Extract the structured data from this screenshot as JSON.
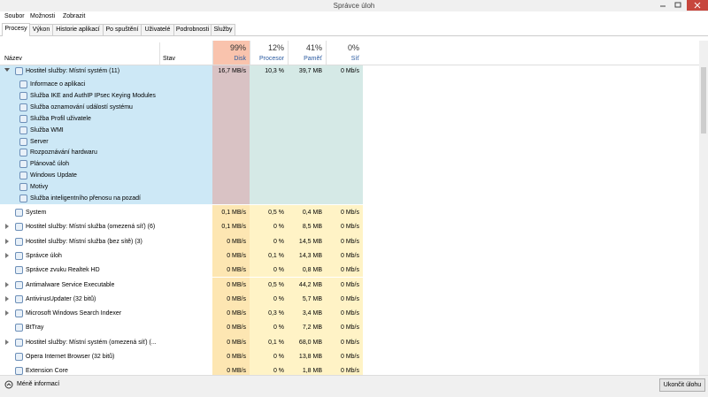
{
  "window": {
    "title": "Správce úloh"
  },
  "menu": [
    "Soubor",
    "Možnosti",
    "Zobrazit"
  ],
  "tabs": [
    "Procesy",
    "Výkon",
    "Historie aplikací",
    "Po spuštění",
    "Uživatelé",
    "Podrobnosti",
    "Služby"
  ],
  "columns": {
    "name": "Název",
    "status": "Stav",
    "disk": {
      "percent": "99%",
      "label": "Disk"
    },
    "cpu": {
      "percent": "12%",
      "label": "Procesor"
    },
    "memory": {
      "percent": "41%",
      "label": "Paměť"
    },
    "network": {
      "percent": "0%",
      "label": "Síť"
    }
  },
  "group": {
    "name": "Hostitel služby: Místní systém (11)",
    "disk": "16,7 MB/s",
    "cpu": "10,3 %",
    "memory": "39,7 MB",
    "network": "0 Mb/s",
    "children": [
      "Informace o aplikaci",
      "Služba IKE and AuthIP IPsec Keying Modules",
      "Služba oznamování událostí systému",
      "Služba Profil uživatele",
      "Služba WMI",
      "Server",
      "Rozpoznávání hardwaru",
      "Plánovač úloh",
      "Windows Update",
      "Motivy",
      "Služba inteligentního přenosu na pozadí"
    ]
  },
  "rows": [
    {
      "name": "System",
      "disk": "0,1 MB/s",
      "cpu": "0,5 %",
      "memory": "0,4 MB",
      "network": "0 Mb/s",
      "expandable": false
    },
    {
      "name": "Hostitel služby: Místní služba (omezená síť) (6)",
      "disk": "0,1 MB/s",
      "cpu": "0 %",
      "memory": "8,5 MB",
      "network": "0 Mb/s",
      "expandable": true
    },
    {
      "name": "Hostitel služby: Místní služba (bez sítě) (3)",
      "disk": "0 MB/s",
      "cpu": "0 %",
      "memory": "14,5 MB",
      "network": "0 Mb/s",
      "expandable": true
    },
    {
      "name": "Správce úloh",
      "disk": "0 MB/s",
      "cpu": "0,1 %",
      "memory": "14,3 MB",
      "network": "0 Mb/s",
      "expandable": true
    },
    {
      "name": "Správce zvuku Realtek HD",
      "disk": "0 MB/s",
      "cpu": "0 %",
      "memory": "0,8 MB",
      "network": "0 Mb/s",
      "expandable": false
    },
    {
      "name": "Antimalware Service Executable",
      "disk": "0 MB/s",
      "cpu": "0,5 %",
      "memory": "44,2 MB",
      "network": "0 Mb/s",
      "expandable": true
    },
    {
      "name": "AntivirusUpdater (32 bitů)",
      "disk": "0 MB/s",
      "cpu": "0 %",
      "memory": "5,7 MB",
      "network": "0 Mb/s",
      "expandable": true
    },
    {
      "name": "Microsoft Windows Search Indexer",
      "disk": "0 MB/s",
      "cpu": "0,3 %",
      "memory": "3,4 MB",
      "network": "0 Mb/s",
      "expandable": true
    },
    {
      "name": "BtTray",
      "disk": "0 MB/s",
      "cpu": "0 %",
      "memory": "7,2 MB",
      "network": "0 Mb/s",
      "expandable": false
    },
    {
      "name": "Hostitel služby: Místní systém (omezená síť) (...",
      "disk": "0 MB/s",
      "cpu": "0,1 %",
      "memory": "68,0 MB",
      "network": "0 Mb/s",
      "expandable": true
    },
    {
      "name": "Opera Internet Browser (32 bitů)",
      "disk": "0 MB/s",
      "cpu": "0 %",
      "memory": "13,8 MB",
      "network": "0 Mb/s",
      "expandable": false
    },
    {
      "name": "Extension Core",
      "disk": "0 MB/s",
      "cpu": "0 %",
      "memory": "1,8 MB",
      "network": "0 Mb/s",
      "expandable": false
    }
  ],
  "footer": {
    "less": "Méně informací",
    "end_task": "Ukončit úlohu"
  }
}
